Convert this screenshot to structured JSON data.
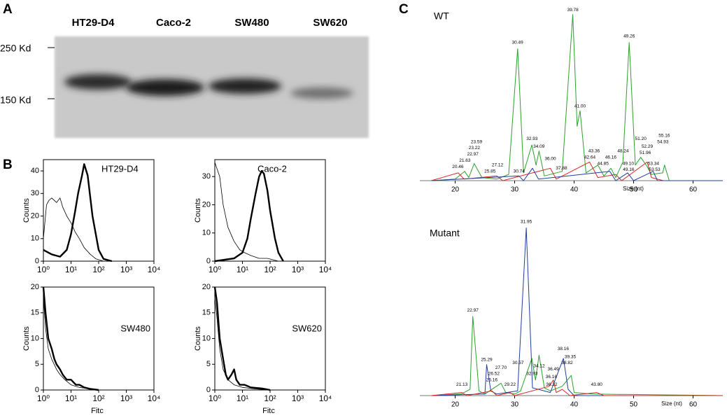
{
  "panel_labels": [
    "A",
    "B",
    "C"
  ],
  "blot": {
    "lanes": [
      "HT29-D4",
      "Caco-2",
      "SW480",
      "SW620"
    ],
    "markers": [
      "250 Kd",
      "150 Kd"
    ]
  },
  "chart_data": [
    {
      "type": "line",
      "xscale": "log",
      "annotation": "HT29-D4",
      "y_label": "Counts",
      "xlim": [
        1,
        10000
      ],
      "xticks": [
        {
          "value": 1,
          "label": "10⁰"
        },
        {
          "value": 10,
          "label": "10¹"
        },
        {
          "value": 100,
          "label": "10²"
        },
        {
          "value": 1000,
          "label": "10³"
        },
        {
          "value": 10000,
          "label": "10⁴"
        }
      ],
      "ylim": [
        0,
        45
      ],
      "yticks": [
        0,
        10,
        20,
        30,
        40
      ],
      "series": [
        {
          "color": "#000000",
          "linewidth": 0.8,
          "x": [
            1,
            1.3,
            1.6,
            2,
            3,
            4,
            5,
            7,
            10,
            14,
            20,
            30,
            50,
            80,
            150
          ],
          "values": [
            10,
            25,
            27,
            28,
            26,
            28,
            24,
            20,
            17,
            13,
            10,
            6,
            3,
            1,
            0
          ]
        },
        {
          "color": "#000000",
          "linewidth": 2.4,
          "x": [
            1,
            2,
            4,
            7,
            10,
            14,
            18,
            25,
            30,
            40,
            60,
            100,
            150,
            300
          ],
          "values": [
            5,
            3,
            2,
            5,
            12,
            22,
            30,
            38,
            43,
            38,
            20,
            5,
            1,
            0
          ]
        }
      ]
    },
    {
      "type": "line",
      "xscale": "log",
      "annotation": "Caco-2",
      "y_label": "Counts",
      "xlim": [
        1,
        10000
      ],
      "xticks": [
        {
          "value": 1,
          "label": "10⁰"
        },
        {
          "value": 10,
          "label": "10¹"
        },
        {
          "value": 100,
          "label": "10²"
        },
        {
          "value": 1000,
          "label": "10³"
        },
        {
          "value": 10000,
          "label": "10⁴"
        }
      ],
      "ylim": [
        0,
        36
      ],
      "yticks": [
        0,
        10,
        20,
        30
      ],
      "series": [
        {
          "color": "#000000",
          "linewidth": 0.8,
          "x": [
            1,
            1.5,
            2,
            3,
            5,
            8,
            12,
            20,
            40,
            80,
            200
          ],
          "values": [
            35,
            30,
            20,
            12,
            7,
            4,
            3,
            2,
            1,
            1,
            0
          ]
        },
        {
          "color": "#000000",
          "linewidth": 2.4,
          "x": [
            1,
            5,
            10,
            15,
            20,
            30,
            40,
            50,
            60,
            80,
            100,
            150,
            200,
            300
          ],
          "values": [
            0,
            1,
            3,
            8,
            15,
            24,
            30,
            32,
            31,
            25,
            18,
            8,
            3,
            0
          ]
        }
      ]
    },
    {
      "type": "line",
      "xscale": "log",
      "annotation": "SW480",
      "y_label": "Counts",
      "x_label": "Fitc",
      "xlim": [
        1,
        10000
      ],
      "xticks": [
        {
          "value": 1,
          "label": "10⁰"
        },
        {
          "value": 10,
          "label": "10¹"
        },
        {
          "value": 100,
          "label": "10²"
        },
        {
          "value": 1000,
          "label": "10³"
        },
        {
          "value": 10000,
          "label": "10⁴"
        }
      ],
      "ylim": [
        0,
        20
      ],
      "yticks": [
        0,
        5,
        10,
        15,
        20
      ],
      "series": [
        {
          "color": "#000000",
          "linewidth": 0.8,
          "x": [
            1,
            1.2,
            1.5,
            2,
            3,
            4,
            6,
            10,
            20,
            50,
            100
          ],
          "values": [
            18,
            12,
            8,
            6,
            4,
            3,
            2,
            1,
            0.5,
            0.2,
            0
          ]
        },
        {
          "color": "#000000",
          "linewidth": 2.4,
          "x": [
            1,
            1.2,
            1.5,
            2,
            2.5,
            3,
            4,
            5,
            7,
            10,
            15,
            20,
            30,
            50,
            100
          ],
          "values": [
            20,
            15,
            10,
            8,
            6,
            5,
            4,
            3,
            2,
            2,
            1,
            1,
            0.5,
            0.2,
            0
          ]
        }
      ]
    },
    {
      "type": "line",
      "xscale": "log",
      "annotation": "SW620",
      "y_label": "Counts",
      "x_label": "Fitc",
      "xlim": [
        1,
        10000
      ],
      "xticks": [
        {
          "value": 1,
          "label": "10⁰"
        },
        {
          "value": 10,
          "label": "10¹"
        },
        {
          "value": 100,
          "label": "10²"
        },
        {
          "value": 1000,
          "label": "10³"
        },
        {
          "value": 10000,
          "label": "10⁴"
        }
      ],
      "ylim": [
        0,
        20
      ],
      "yticks": [
        0,
        5,
        10,
        15,
        20
      ],
      "series": [
        {
          "color": "#000000",
          "linewidth": 0.8,
          "x": [
            1,
            1.2,
            1.5,
            2,
            3,
            5,
            10,
            30,
            100
          ],
          "values": [
            18,
            14,
            8,
            4,
            2,
            1,
            0.5,
            0.2,
            0
          ]
        },
        {
          "color": "#000000",
          "linewidth": 2.4,
          "x": [
            1,
            1.2,
            1.5,
            2,
            2.5,
            3,
            4,
            5,
            6,
            8,
            12,
            20,
            50,
            100
          ],
          "values": [
            20,
            17,
            10,
            6,
            3,
            2,
            3,
            4,
            2,
            1,
            1,
            0.5,
            0.3,
            0
          ]
        }
      ]
    },
    {
      "type": "line",
      "title": "WT",
      "x_label": "Size (nt)",
      "xlim": [
        15,
        65
      ],
      "xticks": [
        20,
        30,
        40,
        50,
        60
      ],
      "ylim": [
        0,
        115
      ],
      "series": [
        {
          "color": "#2ca02c",
          "x": [
            16,
            20,
            21.6,
            22.3,
            23.2,
            24.5,
            27,
            29,
            30.5,
            31.5,
            32.9,
            33.6,
            34.1,
            35,
            38,
            39.78,
            40.5,
            41,
            42,
            44,
            45,
            46.2,
            47,
            48.2,
            49.26,
            50.3,
            51.2,
            52.3,
            53,
            54.9,
            55.2,
            56,
            65
          ],
          "values": [
            0,
            1,
            6,
            2,
            11,
            2,
            1,
            4,
            85,
            5,
            23,
            10,
            19,
            3,
            6,
            107,
            35,
            45,
            5,
            10,
            3,
            8,
            2,
            12,
            89,
            10,
            15,
            9,
            4,
            5,
            10,
            0,
            0
          ]
        },
        {
          "color": "#d62728",
          "x": [
            16,
            20.5,
            21.5,
            27,
            28,
            36,
            37,
            42.6,
            44,
            47,
            48,
            52.3,
            53,
            55,
            65
          ],
          "values": [
            0,
            5,
            1,
            3,
            0,
            8,
            1,
            12,
            2,
            4,
            0,
            12,
            2,
            0,
            0
          ]
        },
        {
          "color": "#1f3fa0",
          "x": [
            16,
            30.7,
            31.5,
            33,
            34,
            46,
            47,
            49,
            50,
            53.3,
            54,
            65
          ],
          "values": [
            0,
            3,
            0,
            8,
            1,
            6,
            0,
            5,
            0,
            6,
            0,
            0
          ]
        }
      ],
      "peaks": [
        {
          "value": 23.59,
          "label": "23.59",
          "height": 25
        },
        {
          "value": 23.22,
          "label": "23.22",
          "height": 21
        },
        {
          "value": 22.97,
          "label": "22.97",
          "height": 17
        },
        {
          "value": 21.63,
          "label": "21.63",
          "height": 13
        },
        {
          "value": 20.46,
          "label": "20.46",
          "height": 9
        },
        {
          "value": 27.12,
          "label": "27.12",
          "height": 10
        },
        {
          "value": 25.85,
          "label": "25.85",
          "height": 6
        },
        {
          "value": 30.49,
          "label": "30.49",
          "height": 89
        },
        {
          "value": 32.93,
          "label": "32.93",
          "height": 27
        },
        {
          "value": 34.09,
          "label": "34.09",
          "height": 22
        },
        {
          "value": 30.74,
          "label": "30.74",
          "height": 6
        },
        {
          "value": 36,
          "label": "36.00",
          "height": 14
        },
        {
          "value": 37.88,
          "label": "37.88",
          "height": 8
        },
        {
          "value": 39.78,
          "label": "39.78",
          "height": 110
        },
        {
          "value": 41,
          "label": "41.00",
          "height": 48
        },
        {
          "value": 43.36,
          "label": "43.36",
          "height": 19
        },
        {
          "value": 42.64,
          "label": "42.64",
          "height": 15
        },
        {
          "value": 44.85,
          "label": "44.85",
          "height": 11
        },
        {
          "value": 46.16,
          "label": "46.16",
          "height": 15
        },
        {
          "value": 48.24,
          "label": "48.24",
          "height": 19
        },
        {
          "value": 49.26,
          "label": "49.26",
          "height": 93
        },
        {
          "value": 49.1,
          "label": "49.10",
          "height": 11
        },
        {
          "value": 49.16,
          "label": "49.16",
          "height": 7
        },
        {
          "value": 51.2,
          "label": "51.20",
          "height": 27
        },
        {
          "value": 52.29,
          "label": "52.29",
          "height": 22
        },
        {
          "value": 51.96,
          "label": "51.96",
          "height": 18
        },
        {
          "value": 55.16,
          "label": "55.16",
          "height": 29
        },
        {
          "value": 54.93,
          "label": "54.93",
          "height": 25
        },
        {
          "value": 53.34,
          "label": "53.34",
          "height": 11
        },
        {
          "value": 53.53,
          "label": "53.53",
          "height": 7
        }
      ]
    },
    {
      "type": "line",
      "title": "Mutant",
      "x_label": "Size (nt)",
      "xlim": [
        15,
        65
      ],
      "xticks": [
        20,
        30,
        40,
        50,
        60
      ],
      "ylim": [
        0,
        115
      ],
      "series": [
        {
          "color": "#2ca02c",
          "x": [
            16,
            21,
            22.5,
            22.97,
            24,
            25,
            27.7,
            28.5,
            30,
            31,
            32.9,
            33.5,
            34.1,
            35,
            36,
            38,
            39.5,
            40,
            43,
            65
          ],
          "values": [
            0,
            1,
            4,
            51,
            3,
            1,
            8,
            2,
            1,
            3,
            24,
            10,
            26,
            5,
            3,
            6,
            13,
            2,
            1,
            0
          ]
        },
        {
          "color": "#1f3fa0",
          "x": [
            16,
            25,
            25.3,
            26,
            27,
            30.5,
            31.95,
            33,
            36,
            38.2,
            39,
            40,
            65
          ],
          "values": [
            0,
            1,
            20,
            3,
            1,
            3,
            108,
            5,
            2,
            24,
            4,
            0,
            0
          ]
        },
        {
          "color": "#d62728",
          "x": [
            16,
            21.1,
            22,
            26.2,
            27,
            29.2,
            30,
            35.8,
            36.5,
            37,
            38,
            39.3,
            43.8,
            45,
            65
          ],
          "values": [
            0,
            2,
            0,
            3,
            0,
            2,
            0,
            6,
            10,
            2,
            4,
            0,
            2,
            0,
            0
          ]
        }
      ],
      "peaks": [
        {
          "value": 22.97,
          "label": "22.97",
          "height": 55
        },
        {
          "value": 21.13,
          "label": "21.13",
          "height": 7
        },
        {
          "value": 25.29,
          "label": "25.29",
          "height": 23
        },
        {
          "value": 26.52,
          "label": "26.52",
          "height": 14
        },
        {
          "value": 26.16,
          "label": "26.16",
          "height": 10
        },
        {
          "value": 27.7,
          "label": "27.70",
          "height": 18
        },
        {
          "value": 29.22,
          "label": "29.22",
          "height": 7
        },
        {
          "value": 30.57,
          "label": "30.57",
          "height": 21
        },
        {
          "value": 31.95,
          "label": "31.95",
          "height": 112
        },
        {
          "value": 32.93,
          "label": "32.93",
          "height": 14
        },
        {
          "value": 34.12,
          "label": "34.12",
          "height": 19
        },
        {
          "value": 36.49,
          "label": "36.49",
          "height": 17
        },
        {
          "value": 36.16,
          "label": "36.16",
          "height": 12
        },
        {
          "value": 36.22,
          "label": "36.22",
          "height": 7
        },
        {
          "value": 38.16,
          "label": "38.16",
          "height": 30
        },
        {
          "value": 39.35,
          "label": "39.35",
          "height": 25
        },
        {
          "value": 38.82,
          "label": "38.82",
          "height": 21
        },
        {
          "value": 43.8,
          "label": "43.80",
          "height": 7
        }
      ]
    }
  ]
}
